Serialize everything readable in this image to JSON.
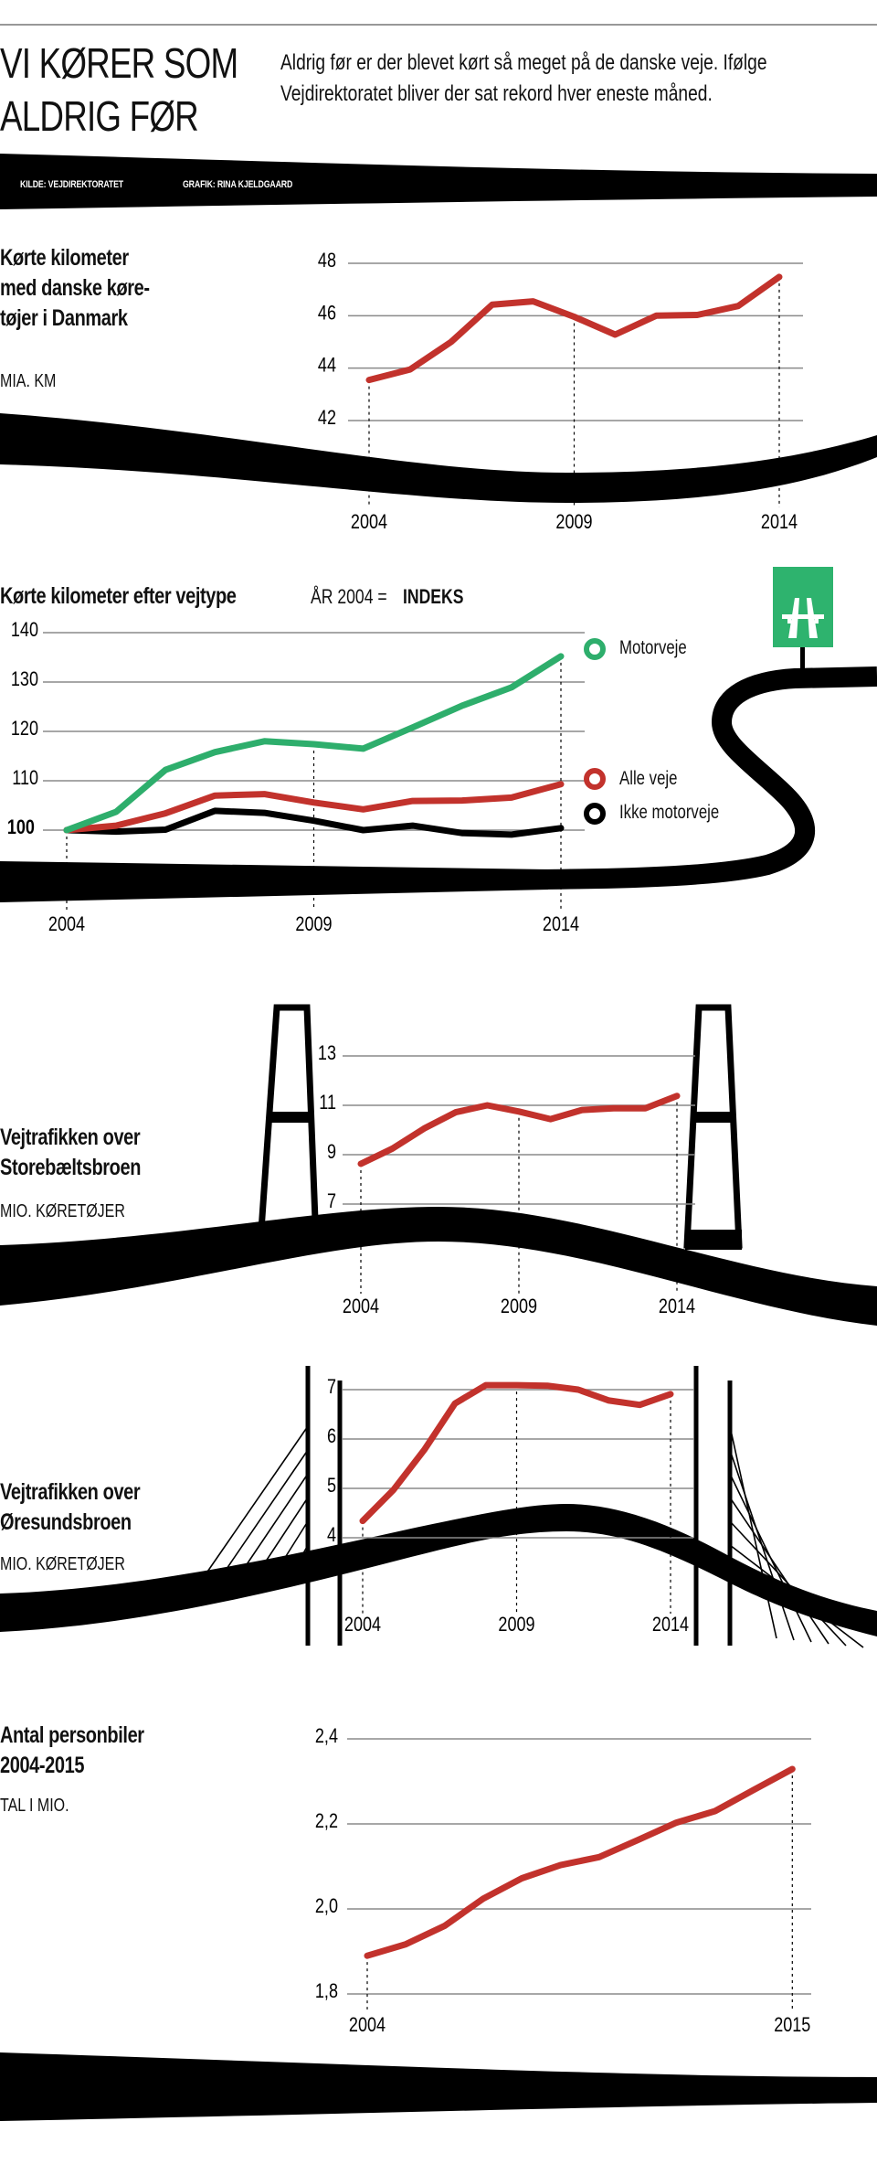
{
  "header": {
    "title_lines": [
      "VI KØRER SOM",
      "ALDRIG FØR"
    ],
    "subtitle_lines": [
      "Aldrig før er der blevet kørt så meget på de danske veje. Ifølge",
      "Vejdirektoratet bliver der sat rekord hver eneste måned."
    ],
    "source": "KILDE: VEJDIREKTORATET",
    "credit": "GRAFIK: RINA KJELDGAARD"
  },
  "colors": {
    "red": "#c2322c",
    "green": "#2eae6c",
    "grid": "#8a8a8a",
    "road": "#000000"
  },
  "icons": {
    "road_sign": "motorway-sign-icon"
  },
  "panels": [
    {
      "title_lines": [
        "Kørte kilometer",
        "med danske køre-",
        "tøjer i Danmark"
      ],
      "unit": "MIA. KM"
    },
    {
      "title": "Kørte kilometer efter vejtype",
      "index_note": "ÅR 2004 =",
      "index_word": "INDEKS"
    },
    {
      "title_lines": [
        "Vejtrafikken over",
        "Storebæltsbroen"
      ],
      "unit": "MIO. KØRETØJER"
    },
    {
      "title_lines": [
        "Vejtrafikken over",
        "Øresundsbroen"
      ],
      "unit": "MIO. KØRETØJER"
    },
    {
      "title_lines": [
        "Antal personbiler",
        "2004-2015"
      ],
      "unit": "TAL I MIO."
    }
  ],
  "chart_data": [
    {
      "type": "line",
      "x": [
        2004,
        2005,
        2006,
        2007,
        2008,
        2009,
        2010,
        2011,
        2012,
        2013,
        2014
      ],
      "series": [
        {
          "color": "#c2322c",
          "values": [
            43.55,
            43.95,
            45.0,
            46.42,
            46.55,
            45.96,
            45.28,
            46.0,
            46.03,
            46.37,
            47.48
          ]
        }
      ],
      "ylim": [
        42,
        48
      ],
      "y_ticks": [
        42,
        44,
        46,
        48
      ],
      "y_tick_labels": [
        "42",
        "44",
        "46",
        "48"
      ],
      "x_tick_labels": [
        "2004",
        "2009",
        "2014"
      ],
      "x_ticks": [
        2004,
        2009,
        2014
      ],
      "grid": true
    },
    {
      "type": "line",
      "x": [
        2004,
        2005,
        2006,
        2007,
        2008,
        2009,
        2010,
        2011,
        2012,
        2013,
        2014
      ],
      "series": [
        {
          "name": "Motorveje",
          "color": "#2eae6c",
          "values": [
            100,
            103.7,
            112.2,
            115.8,
            118.0,
            117.4,
            116.5,
            120.8,
            125.2,
            128.9,
            135.2
          ]
        },
        {
          "name": "Alle veje",
          "color": "#c2322c",
          "values": [
            100,
            100.9,
            103.4,
            107.0,
            107.3,
            105.6,
            104.2,
            105.9,
            106.0,
            106.6,
            109.3
          ]
        },
        {
          "name": "Ikke motorveje",
          "color": "#000000",
          "values": [
            100,
            99.7,
            100.1,
            103.9,
            103.5,
            101.9,
            100.0,
            100.9,
            99.4,
            99.1,
            100.4
          ]
        }
      ],
      "ylim": [
        100,
        140
      ],
      "y_ticks": [
        100,
        110,
        120,
        130,
        140
      ],
      "y_tick_labels": [
        "100",
        "110",
        "120",
        "130",
        "140"
      ],
      "x_tick_labels": [
        "2004",
        "2009",
        "2014"
      ],
      "x_ticks": [
        2004,
        2009,
        2014
      ],
      "grid": true,
      "legend": "right"
    },
    {
      "type": "line",
      "x": [
        2004,
        2005,
        2006,
        2007,
        2008,
        2009,
        2010,
        2011,
        2012,
        2013,
        2014
      ],
      "series": [
        {
          "color": "#c2322c",
          "values": [
            8.63,
            9.25,
            10.06,
            10.72,
            11.0,
            10.75,
            10.44,
            10.81,
            10.88,
            10.88,
            11.38
          ]
        }
      ],
      "ylim": [
        7,
        13
      ],
      "y_ticks": [
        7,
        9,
        11,
        13
      ],
      "y_tick_labels": [
        "7",
        "9",
        "11",
        "13"
      ],
      "x_tick_labels": [
        "2004",
        "2009",
        "2014"
      ],
      "x_ticks": [
        2004,
        2009,
        2014
      ],
      "grid": true
    },
    {
      "type": "line",
      "x": [
        2004,
        2005,
        2006,
        2007,
        2008,
        2009,
        2010,
        2011,
        2012,
        2013,
        2014
      ],
      "series": [
        {
          "color": "#c2322c",
          "values": [
            4.34,
            4.97,
            5.78,
            6.72,
            7.09,
            7.09,
            7.08,
            7.0,
            6.78,
            6.69,
            6.91
          ]
        }
      ],
      "ylim": [
        4,
        7
      ],
      "y_ticks": [
        4,
        5,
        6,
        7
      ],
      "y_tick_labels": [
        "4",
        "5",
        "6",
        "7"
      ],
      "x_tick_labels": [
        "2004",
        "2009",
        "2014"
      ],
      "x_ticks": [
        2004,
        2009,
        2014
      ],
      "grid": true
    },
    {
      "type": "line",
      "x": [
        2004,
        2005,
        2006,
        2007,
        2008,
        2009,
        2010,
        2011,
        2012,
        2013,
        2014,
        2015
      ],
      "series": [
        {
          "color": "#c2322c",
          "values": [
            1.89,
            1.917,
            1.96,
            2.024,
            2.072,
            2.103,
            2.122,
            2.162,
            2.203,
            2.23,
            2.28,
            2.329
          ]
        }
      ],
      "ylim": [
        1.8,
        2.4
      ],
      "y_ticks": [
        1.8,
        2.0,
        2.2,
        2.4
      ],
      "y_tick_labels": [
        "1,8",
        "2,0",
        "2,2",
        "2,4"
      ],
      "x_tick_labels": [
        "2004",
        "2015"
      ],
      "x_ticks": [
        2004,
        2015
      ],
      "grid": true
    }
  ]
}
